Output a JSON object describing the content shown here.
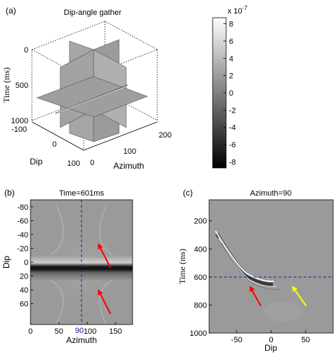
{
  "figure": {
    "panel_a": {
      "letter": "(a)",
      "title": "Dip-angle gather",
      "time_label": "Time (ms)",
      "time_ticks": [
        "0",
        "500",
        "1000"
      ],
      "dip_label": "Dip",
      "dip_ticks": [
        "-100",
        "0",
        "100"
      ],
      "azimuth_label": "Azimuth",
      "azimuth_ticks": [
        "0",
        "100",
        "200"
      ]
    },
    "colorbar": {
      "scale_base": "x 10",
      "scale_exp": "-7",
      "ticks": [
        "8",
        "6",
        "4",
        "2",
        "0",
        "-2",
        "-4",
        "-6",
        "-8"
      ],
      "range": [
        -8.7,
        8.7
      ],
      "colormap": "gray"
    },
    "panel_b": {
      "letter": "(b)",
      "title": "Time=601ms",
      "ylabel": "Dip",
      "yticks": [
        "-80",
        "-60",
        "-40",
        "-20",
        "0",
        "20",
        "40",
        "60"
      ],
      "xlabel": "Azimuth",
      "xticks": [
        "0",
        "50",
        "100",
        "150"
      ],
      "marker_label": "90",
      "marker_azimuth": 90,
      "arrow_color": "#ff0000"
    },
    "panel_c": {
      "letter": "(c)",
      "title": "Azimuth=90",
      "ylabel": "Time (ms)",
      "yticks": [
        "200",
        "400",
        "600",
        "800",
        "1000"
      ],
      "xlabel": "Dip",
      "xticks": [
        "-50",
        "0",
        "50"
      ],
      "marker_time": 601,
      "arrow_colors": [
        "#ff0000",
        "#ffff00"
      ]
    },
    "line_color": "#1a1aa6"
  }
}
